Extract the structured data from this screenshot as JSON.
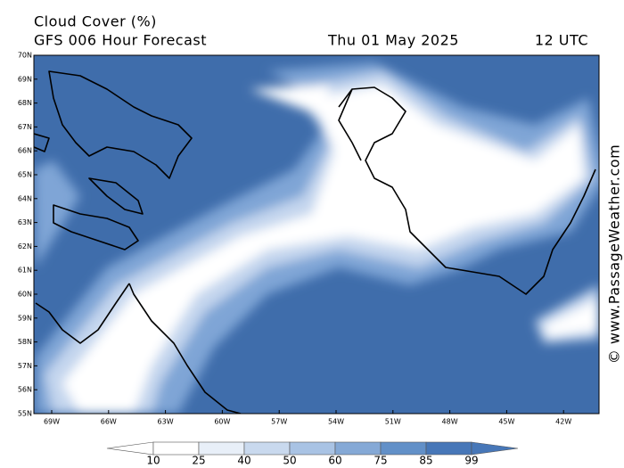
{
  "header": {
    "title": "Cloud Cover (%)",
    "subtitle": "GFS 006 Hour Forecast",
    "date": "Thu 01 May 2025",
    "time": "12 UTC"
  },
  "map": {
    "lat_labels": [
      "70N",
      "69N",
      "68N",
      "67N",
      "66N",
      "65N",
      "64N",
      "63N",
      "62N",
      "61N",
      "60N",
      "59N",
      "58N",
      "57N",
      "56N",
      "55N"
    ],
    "lon_labels": [
      "69W",
      "66W",
      "63W",
      "60W",
      "57W",
      "54W",
      "51W",
      "48W",
      "45W",
      "42W"
    ]
  },
  "colorbar": {
    "levels": [
      10,
      25,
      40,
      50,
      60,
      75,
      85,
      99
    ],
    "colors": [
      "#ffffff",
      "#ffffff",
      "#e8eff8",
      "#c9d9ee",
      "#a9c3e4",
      "#85a9d6",
      "#6290c8",
      "#4777b8",
      "#4777b8"
    ]
  },
  "credit": "© www.PassageWeather.com"
}
